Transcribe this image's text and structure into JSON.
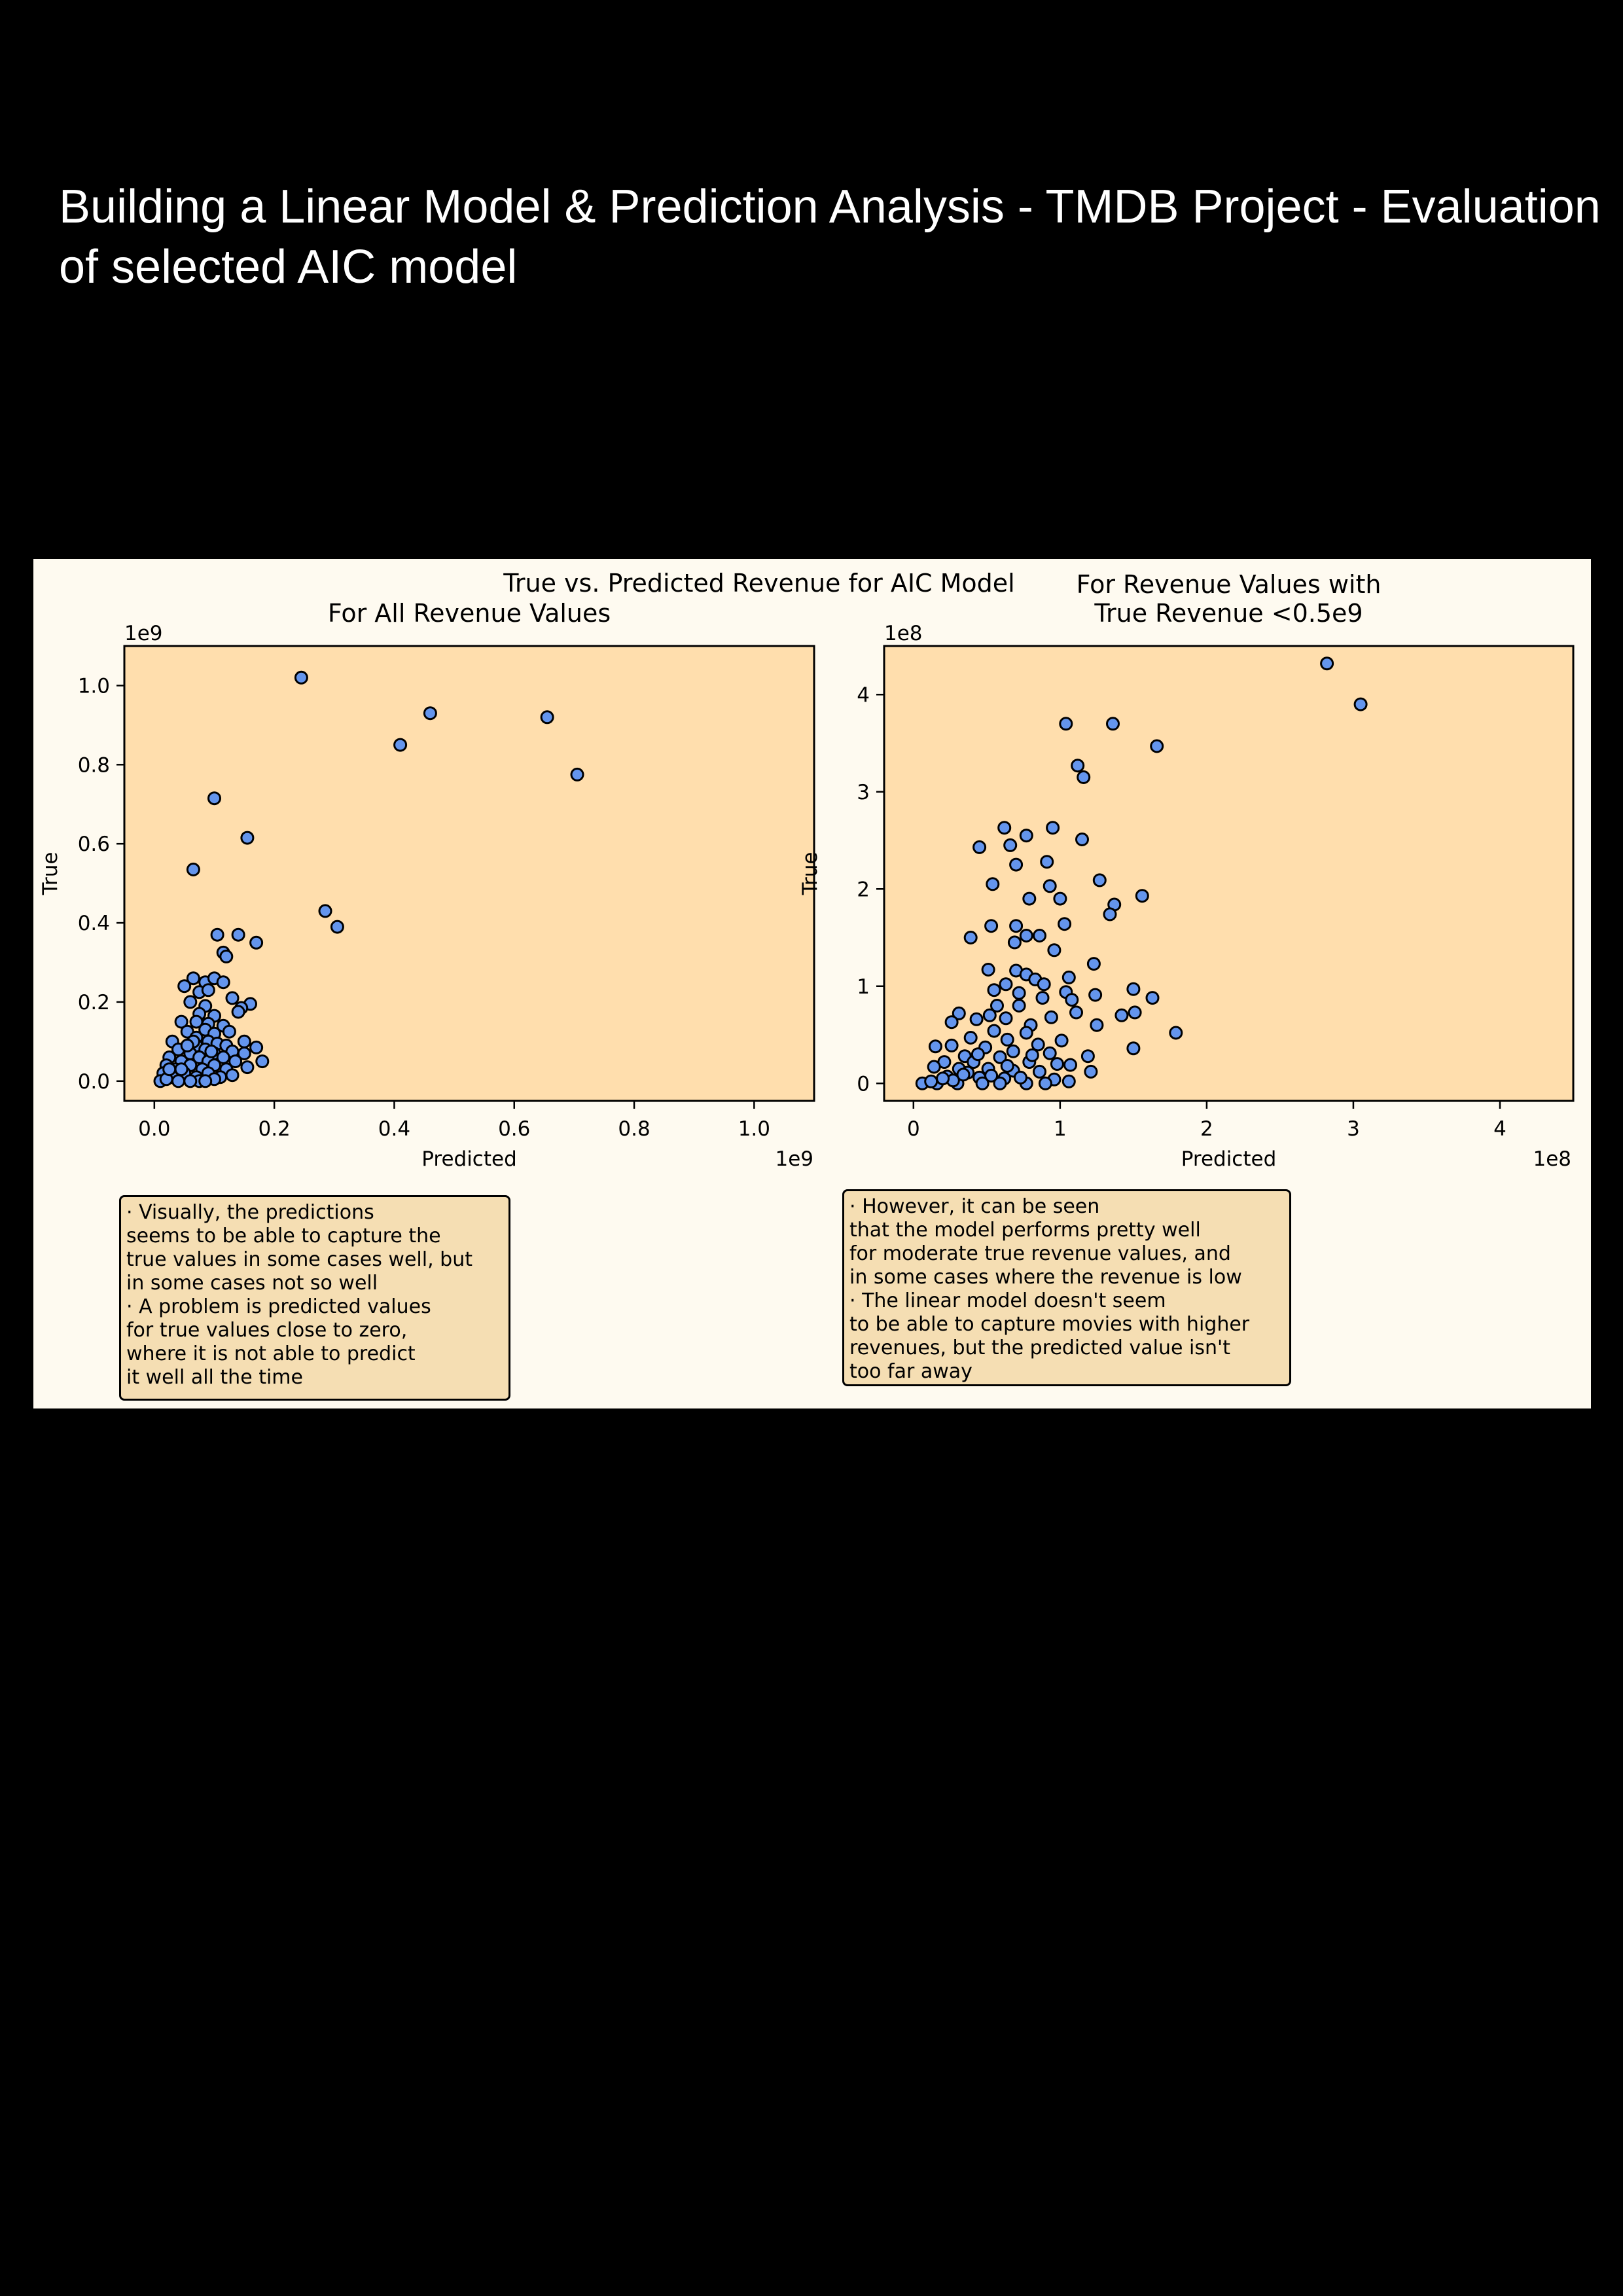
{
  "page": {
    "title": "Building a Linear Model & Prediction Analysis - TMDB Project - Evaluation of selected AIC model"
  },
  "figure": {
    "suptitle": "True vs. Predicted Revenue for AIC Model"
  },
  "colors": {
    "figure_bg": "#fefaf0",
    "axes_bg": "#ffdead",
    "marker_fill": "#6495ed",
    "marker_edge": "#000000",
    "note_bg": "#f5deb3"
  },
  "notes": {
    "left": [
      "· Visually, the predictions\nseems to be able to capture the\ntrue values in some cases well, but\nin some cases not so well",
      "· A problem is predicted values\nfor true values close to zero,\nwhere it is not able to predict\nit well all the time"
    ],
    "right": [
      "· However, it can be seen\nthat the model performs pretty well\nfor moderate true revenue values, and\nin some cases where the revenue is low",
      "· The linear model doesn't seem\nto be able to capture movies with higher\nrevenues, but the predicted value isn't\ntoo far away"
    ]
  },
  "chart_data": [
    {
      "type": "scatter",
      "title": "For All Revenue Values",
      "xlabel": "Predicted",
      "ylabel": "True",
      "x_offset_label": "1e9",
      "y_offset_label": "1e9",
      "xlim": [
        -0.05,
        1.1
      ],
      "ylim": [
        -0.05,
        1.1
      ],
      "xticks": [
        0.0,
        0.2,
        0.4,
        0.6,
        0.8,
        1.0
      ],
      "xtick_labels": [
        "0.0",
        "0.2",
        "0.4",
        "0.6",
        "0.8",
        "1.0"
      ],
      "yticks": [
        0.0,
        0.2,
        0.4,
        0.6,
        0.8,
        1.0
      ],
      "ytick_labels": [
        "0.0",
        "0.2",
        "0.4",
        "0.6",
        "0.8",
        "1.0"
      ],
      "grid": false,
      "legend": "none",
      "points": [
        [
          0.245,
          1.02
        ],
        [
          0.46,
          0.93
        ],
        [
          0.655,
          0.92
        ],
        [
          0.41,
          0.85
        ],
        [
          0.705,
          0.775
        ],
        [
          0.1,
          0.715
        ],
        [
          0.155,
          0.615
        ],
        [
          0.065,
          0.535
        ],
        [
          0.285,
          0.43
        ],
        [
          0.305,
          0.39
        ],
        [
          0.105,
          0.37
        ],
        [
          0.14,
          0.37
        ],
        [
          0.17,
          0.35
        ],
        [
          0.115,
          0.325
        ],
        [
          0.12,
          0.315
        ],
        [
          0.065,
          0.26
        ],
        [
          0.085,
          0.25
        ],
        [
          0.1,
          0.26
        ],
        [
          0.115,
          0.25
        ],
        [
          0.05,
          0.24
        ],
        [
          0.075,
          0.225
        ],
        [
          0.09,
          0.23
        ],
        [
          0.13,
          0.21
        ],
        [
          0.06,
          0.2
        ],
        [
          0.16,
          0.195
        ],
        [
          0.085,
          0.19
        ],
        [
          0.145,
          0.185
        ],
        [
          0.14,
          0.175
        ],
        [
          0.075,
          0.17
        ],
        [
          0.1,
          0.165
        ],
        [
          0.045,
          0.15
        ],
        [
          0.07,
          0.15
        ],
        [
          0.09,
          0.145
        ],
        [
          0.115,
          0.14
        ],
        [
          0.085,
          0.13
        ],
        [
          0.055,
          0.125
        ],
        [
          0.125,
          0.125
        ],
        [
          0.1,
          0.12
        ],
        [
          0.07,
          0.11
        ],
        [
          0.03,
          0.1
        ],
        [
          0.09,
          0.1
        ],
        [
          0.15,
          0.1
        ],
        [
          0.18,
          0.05
        ],
        [
          0.105,
          0.095
        ],
        [
          0.07,
          0.09
        ],
        [
          0.12,
          0.09
        ],
        [
          0.17,
          0.085
        ],
        [
          0.04,
          0.08
        ],
        [
          0.085,
          0.08
        ],
        [
          0.13,
          0.075
        ],
        [
          0.06,
          0.07
        ],
        [
          0.1,
          0.07
        ],
        [
          0.15,
          0.07
        ],
        [
          0.025,
          0.06
        ],
        [
          0.075,
          0.06
        ],
        [
          0.115,
          0.06
        ],
        [
          0.045,
          0.05
        ],
        [
          0.09,
          0.05
        ],
        [
          0.135,
          0.05
        ],
        [
          0.02,
          0.04
        ],
        [
          0.06,
          0.04
        ],
        [
          0.1,
          0.04
        ],
        [
          0.155,
          0.035
        ],
        [
          0.035,
          0.03
        ],
        [
          0.08,
          0.03
        ],
        [
          0.12,
          0.03
        ],
        [
          0.015,
          0.02
        ],
        [
          0.05,
          0.02
        ],
        [
          0.09,
          0.02
        ],
        [
          0.13,
          0.015
        ],
        [
          0.03,
          0.01
        ],
        [
          0.07,
          0.01
        ],
        [
          0.11,
          0.01
        ],
        [
          0.01,
          0.0
        ],
        [
          0.04,
          0.0
        ],
        [
          0.075,
          0.0
        ],
        [
          0.1,
          0.005
        ],
        [
          0.02,
          0.005
        ],
        [
          0.06,
          0.0
        ],
        [
          0.085,
          0.0
        ],
        [
          0.045,
          0.03
        ],
        [
          0.065,
          0.1
        ],
        [
          0.095,
          0.075
        ],
        [
          0.055,
          0.09
        ],
        [
          0.025,
          0.03
        ]
      ]
    },
    {
      "type": "scatter",
      "title": "For Revenue Values with\n True Revenue <0.5e9",
      "xlabel": "Predicted",
      "ylabel": "True",
      "x_offset_label": "1e8",
      "y_offset_label": "1e8",
      "xlim": [
        -0.2,
        4.5
      ],
      "ylim": [
        -0.18,
        4.5
      ],
      "xticks": [
        0,
        1,
        2,
        3,
        4
      ],
      "xtick_labels": [
        "0",
        "1",
        "2",
        "3",
        "4"
      ],
      "yticks": [
        0,
        1,
        2,
        3,
        4
      ],
      "ytick_labels": [
        "0",
        "1",
        "2",
        "3",
        "4"
      ],
      "grid": false,
      "legend": "none",
      "points": [
        [
          2.82,
          4.32
        ],
        [
          3.05,
          3.9
        ],
        [
          1.04,
          3.7
        ],
        [
          1.36,
          3.7
        ],
        [
          1.66,
          3.47
        ],
        [
          1.12,
          3.27
        ],
        [
          1.16,
          3.15
        ],
        [
          0.62,
          2.63
        ],
        [
          0.95,
          2.63
        ],
        [
          0.66,
          2.45
        ],
        [
          0.45,
          2.43
        ],
        [
          0.77,
          2.55
        ],
        [
          1.15,
          2.51
        ],
        [
          0.7,
          2.25
        ],
        [
          0.91,
          2.28
        ],
        [
          0.54,
          2.05
        ],
        [
          0.93,
          2.03
        ],
        [
          1.27,
          2.09
        ],
        [
          0.79,
          1.9
        ],
        [
          1.0,
          1.9
        ],
        [
          1.56,
          1.93
        ],
        [
          1.37,
          1.84
        ],
        [
          1.34,
          1.74
        ],
        [
          0.39,
          1.5
        ],
        [
          0.53,
          1.62
        ],
        [
          0.7,
          1.62
        ],
        [
          1.03,
          1.64
        ],
        [
          0.77,
          1.52
        ],
        [
          0.86,
          1.52
        ],
        [
          0.69,
          1.45
        ],
        [
          0.96,
          1.37
        ],
        [
          1.23,
          1.23
        ],
        [
          0.51,
          1.17
        ],
        [
          0.7,
          1.16
        ],
        [
          0.77,
          1.12
        ],
        [
          0.83,
          1.07
        ],
        [
          1.06,
          1.09
        ],
        [
          0.63,
          1.02
        ],
        [
          0.89,
          1.02
        ],
        [
          1.5,
          0.97
        ],
        [
          0.55,
          0.96
        ],
        [
          0.72,
          0.93
        ],
        [
          1.04,
          0.94
        ],
        [
          1.63,
          0.88
        ],
        [
          0.88,
          0.88
        ],
        [
          1.08,
          0.86
        ],
        [
          1.24,
          0.91
        ],
        [
          0.72,
          0.8
        ],
        [
          0.57,
          0.8
        ],
        [
          1.11,
          0.73
        ],
        [
          0.31,
          0.72
        ],
        [
          0.43,
          0.66
        ],
        [
          0.26,
          0.63
        ],
        [
          0.63,
          0.67
        ],
        [
          0.94,
          0.68
        ],
        [
          1.42,
          0.7
        ],
        [
          1.51,
          0.73
        ],
        [
          0.52,
          0.7
        ],
        [
          0.8,
          0.6
        ],
        [
          1.25,
          0.6
        ],
        [
          1.79,
          0.52
        ],
        [
          0.55,
          0.54
        ],
        [
          0.77,
          0.52
        ],
        [
          1.01,
          0.44
        ],
        [
          0.39,
          0.47
        ],
        [
          0.64,
          0.45
        ],
        [
          0.85,
          0.4
        ],
        [
          0.15,
          0.38
        ],
        [
          0.26,
          0.39
        ],
        [
          0.49,
          0.37
        ],
        [
          0.68,
          0.33
        ],
        [
          0.93,
          0.31
        ],
        [
          1.5,
          0.36
        ],
        [
          0.35,
          0.28
        ],
        [
          0.59,
          0.27
        ],
        [
          1.19,
          0.28
        ],
        [
          0.21,
          0.22
        ],
        [
          0.41,
          0.22
        ],
        [
          0.79,
          0.22
        ],
        [
          1.07,
          0.19
        ],
        [
          0.14,
          0.17
        ],
        [
          0.31,
          0.15
        ],
        [
          0.51,
          0.15
        ],
        [
          0.68,
          0.13
        ],
        [
          0.86,
          0.12
        ],
        [
          1.21,
          0.12
        ],
        [
          0.23,
          0.07
        ],
        [
          0.45,
          0.06
        ],
        [
          0.62,
          0.05
        ],
        [
          0.96,
          0.04
        ],
        [
          0.06,
          0.0
        ],
        [
          0.16,
          0.0
        ],
        [
          0.3,
          0.0
        ],
        [
          0.47,
          0.0
        ],
        [
          0.59,
          0.0
        ],
        [
          0.77,
          0.0
        ],
        [
          0.9,
          0.0
        ],
        [
          1.06,
          0.02
        ],
        [
          0.37,
          0.11
        ],
        [
          0.64,
          0.18
        ],
        [
          0.81,
          0.29
        ],
        [
          0.12,
          0.02
        ],
        [
          0.53,
          0.08
        ],
        [
          0.73,
          0.06
        ],
        [
          0.98,
          0.2
        ],
        [
          0.27,
          0.03
        ],
        [
          0.44,
          0.3
        ],
        [
          0.34,
          0.09
        ],
        [
          0.2,
          0.05
        ]
      ]
    }
  ]
}
